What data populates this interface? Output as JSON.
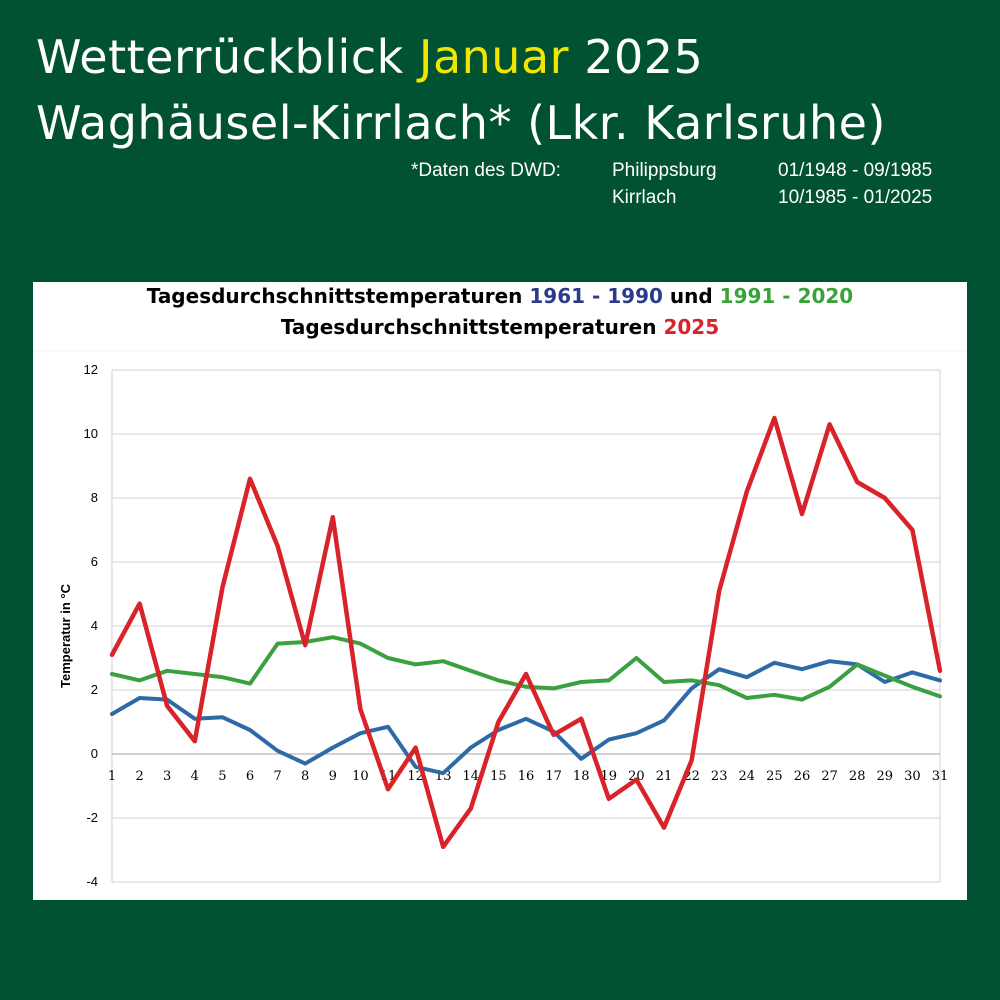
{
  "header": {
    "title_prefix": "Wetterrückblick",
    "title_month": "Januar",
    "title_year": "2025",
    "subtitle": "Waghäusel-Kirrlach* (Lkr. Karlsruhe)",
    "source_label": "*Daten des DWD:",
    "sources": [
      {
        "station": "Philippsburg",
        "period": "01/1948 - 09/1985"
      },
      {
        "station": "Kirrlach",
        "period": "10/1985 - 01/2025"
      }
    ]
  },
  "colors": {
    "background": "#005232",
    "highlight": "#f2e600",
    "series_1961_1990": "#2e6aa6",
    "series_1991_2020": "#3aa040",
    "series_2025": "#d8232a"
  },
  "chart_data": {
    "type": "line",
    "title_line1": {
      "prefix": "Tagesdurchschnittstemperaturen",
      "period1": "1961 - 1990",
      "joiner": "und",
      "period2": "1991 - 2020"
    },
    "title_line2": {
      "prefix": "Tagesdurchschnittstemperaturen",
      "year": "2025"
    },
    "ylabel": "Temperatur in °C",
    "xlabel": "",
    "ylim": [
      -4,
      12
    ],
    "yticks": [
      -4,
      -2,
      0,
      2,
      4,
      6,
      8,
      10,
      12
    ],
    "grid": true,
    "legend": "none",
    "x": [
      1,
      2,
      3,
      4,
      5,
      6,
      7,
      8,
      9,
      10,
      11,
      12,
      13,
      14,
      15,
      16,
      17,
      18,
      19,
      20,
      21,
      22,
      23,
      24,
      25,
      26,
      27,
      28,
      29,
      30,
      31
    ],
    "series": [
      {
        "key": "1961-1990",
        "color": "#2e6aa6",
        "values": [
          1.25,
          1.75,
          1.7,
          1.1,
          1.15,
          0.75,
          0.1,
          -0.3,
          0.2,
          0.65,
          0.85,
          -0.4,
          -0.6,
          0.2,
          0.75,
          1.1,
          0.7,
          -0.15,
          0.45,
          0.65,
          1.05,
          2.05,
          2.65,
          2.4,
          2.85,
          2.65,
          2.9,
          2.8,
          2.25,
          2.55,
          2.3
        ]
      },
      {
        "key": "1991-2020",
        "color": "#3aa040",
        "values": [
          2.5,
          2.3,
          2.6,
          2.5,
          2.4,
          2.2,
          3.45,
          3.5,
          3.65,
          3.45,
          3.0,
          2.8,
          2.9,
          2.6,
          2.3,
          2.1,
          2.05,
          2.25,
          2.3,
          3.0,
          2.25,
          2.3,
          2.15,
          1.75,
          1.85,
          1.7,
          2.1,
          2.8,
          2.45,
          2.1,
          1.8
        ]
      },
      {
        "key": "2025",
        "color": "#d8232a",
        "values": [
          3.1,
          4.7,
          1.5,
          0.4,
          5.2,
          8.6,
          6.5,
          3.4,
          7.4,
          1.4,
          -1.1,
          0.2,
          -2.9,
          -1.7,
          1.0,
          2.5,
          0.6,
          1.1,
          -1.4,
          -0.8,
          -2.3,
          -0.2,
          5.1,
          8.2,
          10.5,
          7.5,
          10.3,
          8.5,
          8.0,
          7.0,
          2.6
        ]
      }
    ]
  }
}
